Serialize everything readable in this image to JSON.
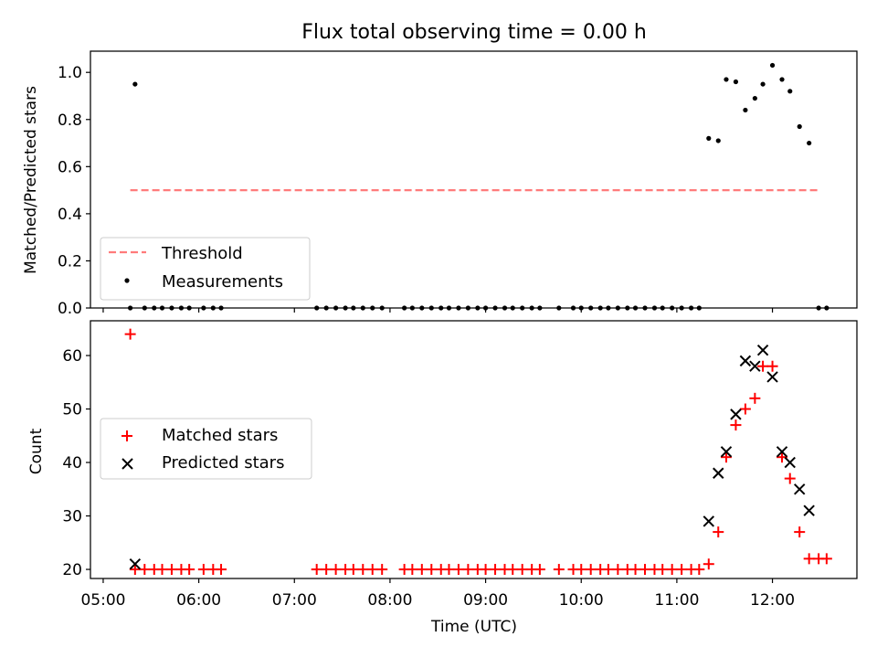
{
  "chart_data": {
    "title": "Flux total observing time = 0.00 h",
    "panels": [
      {
        "type": "scatter",
        "ylabel": "Matched/Predicted stars",
        "ylim": [
          0.0,
          1.09
        ],
        "yticks": [
          "0.0",
          "0.2",
          "0.4",
          "0.6",
          "0.8",
          "1.0"
        ],
        "ytick_values": [
          0.0,
          0.2,
          0.4,
          0.6,
          0.8,
          1.0
        ],
        "grid": false,
        "legend_position": "lower-left",
        "threshold": {
          "name": "Threshold",
          "y": 0.5,
          "x": [
            "05:17",
            "12:30"
          ],
          "color": "#ff7b7b"
        },
        "measurements": {
          "name": "Measurements",
          "color": "#000000",
          "x": [
            "05:17",
            "05:20",
            "05:26",
            "05:32",
            "05:37",
            "05:43",
            "05:49",
            "05:54",
            "06:03",
            "06:09",
            "06:14",
            "07:14",
            "07:20",
            "07:26",
            "07:32",
            "07:37",
            "07:43",
            "07:49",
            "07:55",
            "08:09",
            "08:14",
            "08:20",
            "08:26",
            "08:32",
            "08:37",
            "08:43",
            "08:49",
            "08:55",
            "09:00",
            "09:06",
            "09:12",
            "09:17",
            "09:23",
            "09:29",
            "09:34",
            "09:46",
            "09:55",
            "10:00",
            "10:06",
            "10:12",
            "10:17",
            "10:23",
            "10:29",
            "10:34",
            "10:40",
            "10:46",
            "10:51",
            "10:57",
            "11:03",
            "11:09",
            "11:14",
            "11:20",
            "11:26",
            "11:31",
            "11:37",
            "11:43",
            "11:49",
            "11:54",
            "12:00",
            "12:06",
            "12:11",
            "12:17",
            "12:23",
            "12:29",
            "12:34"
          ],
          "y": [
            0.0,
            0.95,
            0.0,
            0.0,
            0.0,
            0.0,
            0.0,
            0.0,
            0.0,
            0.0,
            0.0,
            0.0,
            0.0,
            0.0,
            0.0,
            0.0,
            0.0,
            0.0,
            0.0,
            0.0,
            0.0,
            0.0,
            0.0,
            0.0,
            0.0,
            0.0,
            0.0,
            0.0,
            0.0,
            0.0,
            0.0,
            0.0,
            0.0,
            0.0,
            0.0,
            0.0,
            0.0,
            0.0,
            0.0,
            0.0,
            0.0,
            0.0,
            0.0,
            0.0,
            0.0,
            0.0,
            0.0,
            0.0,
            0.0,
            0.0,
            0.0,
            0.72,
            0.71,
            0.97,
            0.96,
            0.84,
            0.89,
            0.95,
            1.03,
            0.97,
            0.92,
            0.77,
            0.7,
            0.0,
            0.0
          ]
        }
      },
      {
        "type": "scatter",
        "ylabel": "Count",
        "xlabel": "Time (UTC)",
        "ylim": [
          18.3,
          66.5
        ],
        "yticks": [
          "20",
          "30",
          "40",
          "50",
          "60"
        ],
        "ytick_values": [
          20,
          30,
          40,
          50,
          60
        ],
        "grid": false,
        "legend_position": "center-left",
        "matched": {
          "name": "Matched stars",
          "color": "#ff0000",
          "marker": "+",
          "x": [
            "05:17",
            "05:20",
            "05:26",
            "05:32",
            "05:37",
            "05:43",
            "05:49",
            "05:54",
            "06:03",
            "06:09",
            "06:14",
            "07:14",
            "07:20",
            "07:26",
            "07:32",
            "07:37",
            "07:43",
            "07:49",
            "07:55",
            "08:09",
            "08:14",
            "08:20",
            "08:26",
            "08:32",
            "08:37",
            "08:43",
            "08:49",
            "08:55",
            "09:00",
            "09:06",
            "09:12",
            "09:17",
            "09:23",
            "09:29",
            "09:34",
            "09:46",
            "09:55",
            "10:00",
            "10:06",
            "10:12",
            "10:17",
            "10:23",
            "10:29",
            "10:34",
            "10:40",
            "10:46",
            "10:51",
            "10:57",
            "11:03",
            "11:09",
            "11:14",
            "11:20",
            "11:26",
            "11:31",
            "11:37",
            "11:43",
            "11:49",
            "11:54",
            "12:00",
            "12:06",
            "12:11",
            "12:17",
            "12:23",
            "12:29",
            "12:34"
          ],
          "y": [
            64,
            20,
            20,
            20,
            20,
            20,
            20,
            20,
            20,
            20,
            20,
            20,
            20,
            20,
            20,
            20,
            20,
            20,
            20,
            20,
            20,
            20,
            20,
            20,
            20,
            20,
            20,
            20,
            20,
            20,
            20,
            20,
            20,
            20,
            20,
            20,
            20,
            20,
            20,
            20,
            20,
            20,
            20,
            20,
            20,
            20,
            20,
            20,
            20,
            20,
            20,
            21,
            27,
            41,
            47,
            50,
            52,
            58,
            58,
            41,
            37,
            27,
            22,
            22,
            22
          ]
        },
        "predicted": {
          "name": "Predicted stars",
          "color": "#000000",
          "marker": "x",
          "x": [
            "05:20",
            "11:20",
            "11:26",
            "11:31",
            "11:37",
            "11:43",
            "11:49",
            "11:54",
            "12:00",
            "12:06",
            "12:11",
            "12:17",
            "12:23"
          ],
          "y": [
            21,
            29,
            38,
            42,
            49,
            59,
            58,
            61,
            56,
            42,
            40,
            35,
            31
          ]
        },
        "xticks": [
          "05:00",
          "06:00",
          "07:00",
          "08:00",
          "09:00",
          "10:00",
          "11:00",
          "12:00"
        ]
      }
    ]
  }
}
